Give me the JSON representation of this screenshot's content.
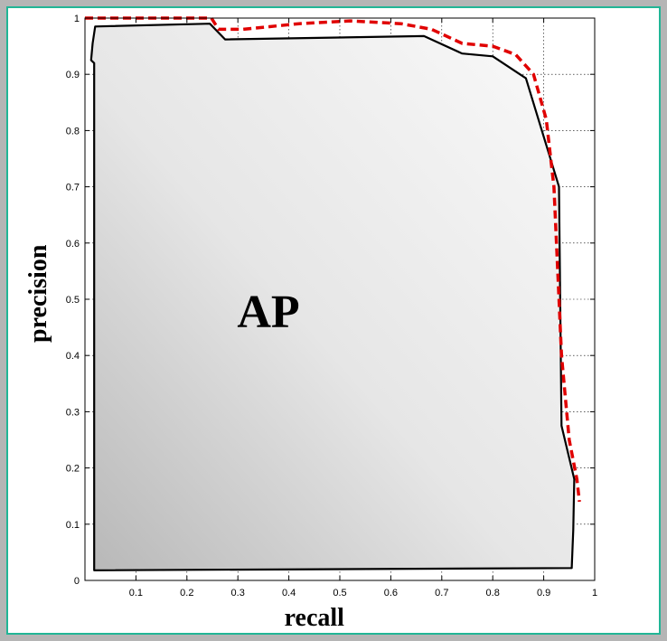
{
  "chart_data": {
    "type": "line",
    "title": "",
    "xlabel": "recall",
    "ylabel": "precision",
    "area_label": "AP",
    "xlim": [
      0,
      1
    ],
    "ylim": [
      0,
      1
    ],
    "grid": true,
    "xticks": [
      "",
      "0.1",
      "0.2",
      "0.3",
      "0.4",
      "0.5",
      "0.6",
      "0.7",
      "0.8",
      "0.9",
      "1"
    ],
    "yticks": [
      "0",
      "0.1",
      "0.2",
      "0.3",
      "0.4",
      "0.5",
      "0.6",
      "0.7",
      "0.8",
      "0.9",
      "1"
    ],
    "series": [
      {
        "style": "solid",
        "color": "#000000",
        "fill": "gray-gradient",
        "x": [
          0.018,
          0.018,
          0.012,
          0.015,
          0.02,
          0.245,
          0.275,
          0.665,
          0.74,
          0.8,
          0.865,
          0.93,
          0.935,
          0.96,
          0.958,
          0.955,
          0.018
        ],
        "y": [
          0.018,
          0.92,
          0.925,
          0.955,
          0.985,
          0.99,
          0.962,
          0.968,
          0.937,
          0.932,
          0.893,
          0.7,
          0.275,
          0.18,
          0.09,
          0.022,
          0.018
        ]
      },
      {
        "style": "dashed",
        "color": "#e00000",
        "x": [
          0.0,
          0.248,
          0.262,
          0.31,
          0.42,
          0.52,
          0.62,
          0.68,
          0.74,
          0.8,
          0.845,
          0.88,
          0.905,
          0.92,
          0.935,
          0.95,
          0.965,
          0.97
        ],
        "y": [
          1.0,
          1.0,
          0.98,
          0.98,
          0.99,
          0.995,
          0.99,
          0.98,
          0.955,
          0.95,
          0.935,
          0.9,
          0.82,
          0.7,
          0.4,
          0.25,
          0.18,
          0.14
        ]
      }
    ]
  }
}
